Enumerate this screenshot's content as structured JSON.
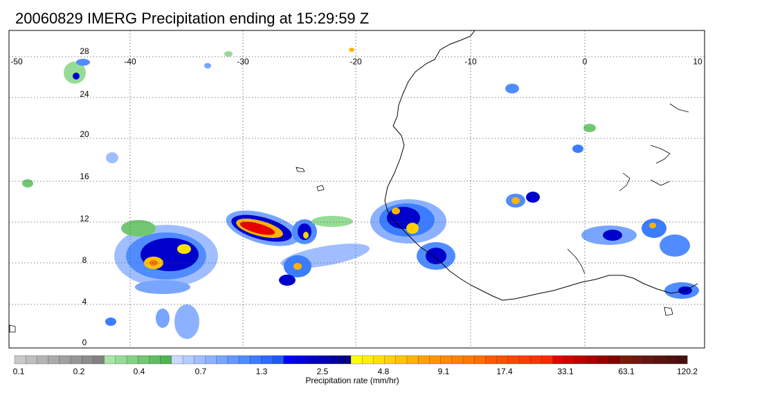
{
  "title": "20060829 IMERG Precipitation ending at 15:29:59 Z",
  "map": {
    "lon_labels": [
      "-50",
      "-40",
      "-30",
      "-20",
      "-10",
      "0",
      "10"
    ],
    "lat_labels": [
      "28",
      "24",
      "20",
      "16",
      "12",
      "8",
      "4",
      "0"
    ],
    "coastline_color": "#000000",
    "gridline_style": "dotted"
  },
  "colorbar": {
    "title": "Precipitation rate (mm/hr)",
    "tick_labels": [
      "0.1",
      "0.2",
      "0.4",
      "0.7",
      "1.3",
      "2.5",
      "4.8",
      "9.1",
      "17.4",
      "33.1",
      "63.1",
      "120.2"
    ],
    "colors": [
      "#c8c8c8",
      "#bebebe",
      "#b4b4b4",
      "#aaaaaa",
      "#a0a0a0",
      "#969696",
      "#8c8c8c",
      "#828282",
      "#a8e6a8",
      "#96dc96",
      "#84d284",
      "#72c872",
      "#60be60",
      "#50b450",
      "#c8d8ff",
      "#b4cbff",
      "#a0beff",
      "#8cb2ff",
      "#78a5ff",
      "#6498ff",
      "#508cff",
      "#3c7dff",
      "#2d6aff",
      "#1e5aff",
      "#0000ff",
      "#0000e6",
      "#0000cd",
      "#0000b4",
      "#00009b",
      "#000082",
      "#ffff00",
      "#fff000",
      "#ffe100",
      "#ffd200",
      "#ffc300",
      "#ffb400",
      "#ffa000",
      "#ff9600",
      "#ff8c00",
      "#ff8200",
      "#ff7800",
      "#ff6e00",
      "#ff5a00",
      "#ff5000",
      "#ff4600",
      "#ff3c00",
      "#ff3200",
      "#ff2800",
      "#e60000",
      "#d20000",
      "#be0000",
      "#aa0000",
      "#960000",
      "#820000",
      "#7a1a0a",
      "#701810",
      "#661610",
      "#5c1410",
      "#521210",
      "#481010"
    ]
  }
}
